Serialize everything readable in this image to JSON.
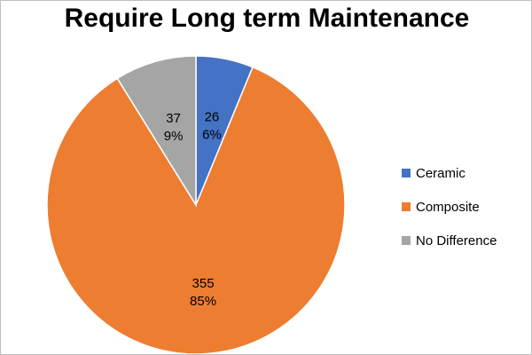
{
  "chart_data": {
    "type": "pie",
    "title": "Require Long term Maintenance",
    "categories": [
      "Ceramic",
      "Composite",
      "No Difference"
    ],
    "values": [
      26,
      355,
      37
    ],
    "percent_labels": [
      "6%",
      "85%",
      "9%"
    ],
    "colors": [
      "#4472C4",
      "#ED7D31",
      "#A5A5A5"
    ],
    "legend_position": "right",
    "start_angle": "12 o'clock, clockwise"
  }
}
